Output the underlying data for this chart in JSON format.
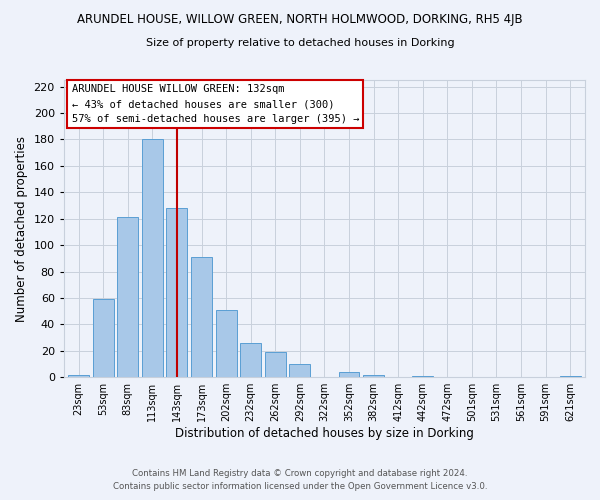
{
  "title": "ARUNDEL HOUSE, WILLOW GREEN, NORTH HOLMWOOD, DORKING, RH5 4JB",
  "subtitle": "Size of property relative to detached houses in Dorking",
  "xlabel": "Distribution of detached houses by size in Dorking",
  "ylabel": "Number of detached properties",
  "bar_labels": [
    "23sqm",
    "53sqm",
    "83sqm",
    "113sqm",
    "143sqm",
    "173sqm",
    "202sqm",
    "232sqm",
    "262sqm",
    "292sqm",
    "322sqm",
    "352sqm",
    "382sqm",
    "412sqm",
    "442sqm",
    "472sqm",
    "501sqm",
    "531sqm",
    "561sqm",
    "591sqm",
    "621sqm"
  ],
  "bar_values": [
    2,
    59,
    121,
    180,
    128,
    91,
    51,
    26,
    19,
    10,
    0,
    4,
    2,
    0,
    1,
    0,
    0,
    0,
    0,
    0,
    1
  ],
  "bar_color": "#a8c8e8",
  "bar_edge_color": "#5a9fd4",
  "ylim": [
    0,
    225
  ],
  "yticks": [
    0,
    20,
    40,
    60,
    80,
    100,
    120,
    140,
    160,
    180,
    200,
    220
  ],
  "vline_x": 4,
  "vline_color": "#c00000",
  "annotation_title": "ARUNDEL HOUSE WILLOW GREEN: 132sqm",
  "annotation_line1": "← 43% of detached houses are smaller (300)",
  "annotation_line2": "57% of semi-detached houses are larger (395) →",
  "annotation_box_color": "#ffffff",
  "annotation_box_edge": "#cc0000",
  "background_color": "#eef2fa",
  "footer1": "Contains HM Land Registry data © Crown copyright and database right 2024.",
  "footer2": "Contains public sector information licensed under the Open Government Licence v3.0."
}
